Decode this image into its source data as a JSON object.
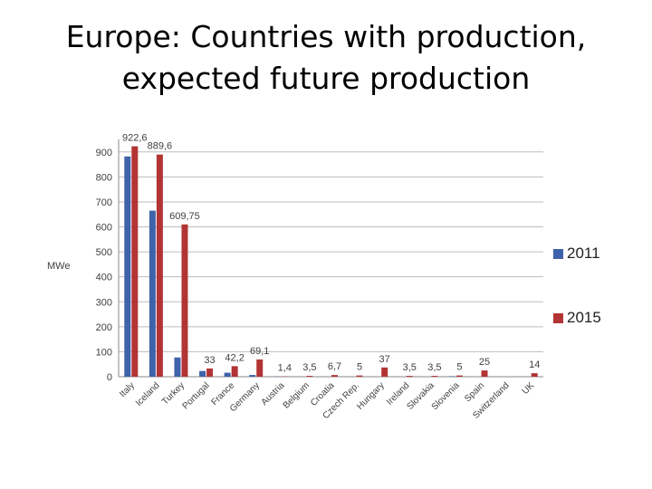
{
  "title": {
    "line1": "Europe: Countries with production,",
    "line2": "expected future production"
  },
  "colors": {
    "s2011": "#3f63aa",
    "s2015": "#b33434",
    "grid": "#bdbdbd",
    "text": "#404040"
  },
  "chart_data": {
    "type": "bar",
    "ylabel": "MWe",
    "ylim": [
      0,
      950
    ],
    "yticks": [
      0,
      100,
      200,
      300,
      400,
      500,
      600,
      700,
      800,
      900
    ],
    "grid": true,
    "legend_placement": "right",
    "categories": [
      "Italy",
      "Iceland",
      "Turkey",
      "Portugal",
      "France",
      "Germany",
      "Austria",
      "Belgium",
      "Croatia",
      "Czech Rep.",
      "Hungary",
      "Ireland",
      "Slovakia",
      "Slovenia",
      "Spain",
      "Switzerland",
      "UK"
    ],
    "series": [
      {
        "name": "2011",
        "values": [
          882,
          665,
          77,
          23,
          16,
          7,
          1,
          0,
          0,
          0,
          0,
          0,
          0,
          2,
          0,
          0,
          0
        ]
      },
      {
        "name": "2015",
        "values": [
          922.6,
          889.6,
          609.75,
          33,
          42.2,
          69.1,
          1.4,
          3.5,
          6.7,
          5,
          37,
          3.5,
          3.5,
          5,
          25,
          0,
          14
        ]
      }
    ],
    "data_labels": [
      "922,6",
      "889,6",
      "609,75",
      "33",
      "42,2",
      "69,1",
      "1,4",
      "3,5",
      "6,7",
      "5",
      "37",
      "3,5",
      "3,5",
      "5",
      "25",
      "",
      "14"
    ]
  }
}
